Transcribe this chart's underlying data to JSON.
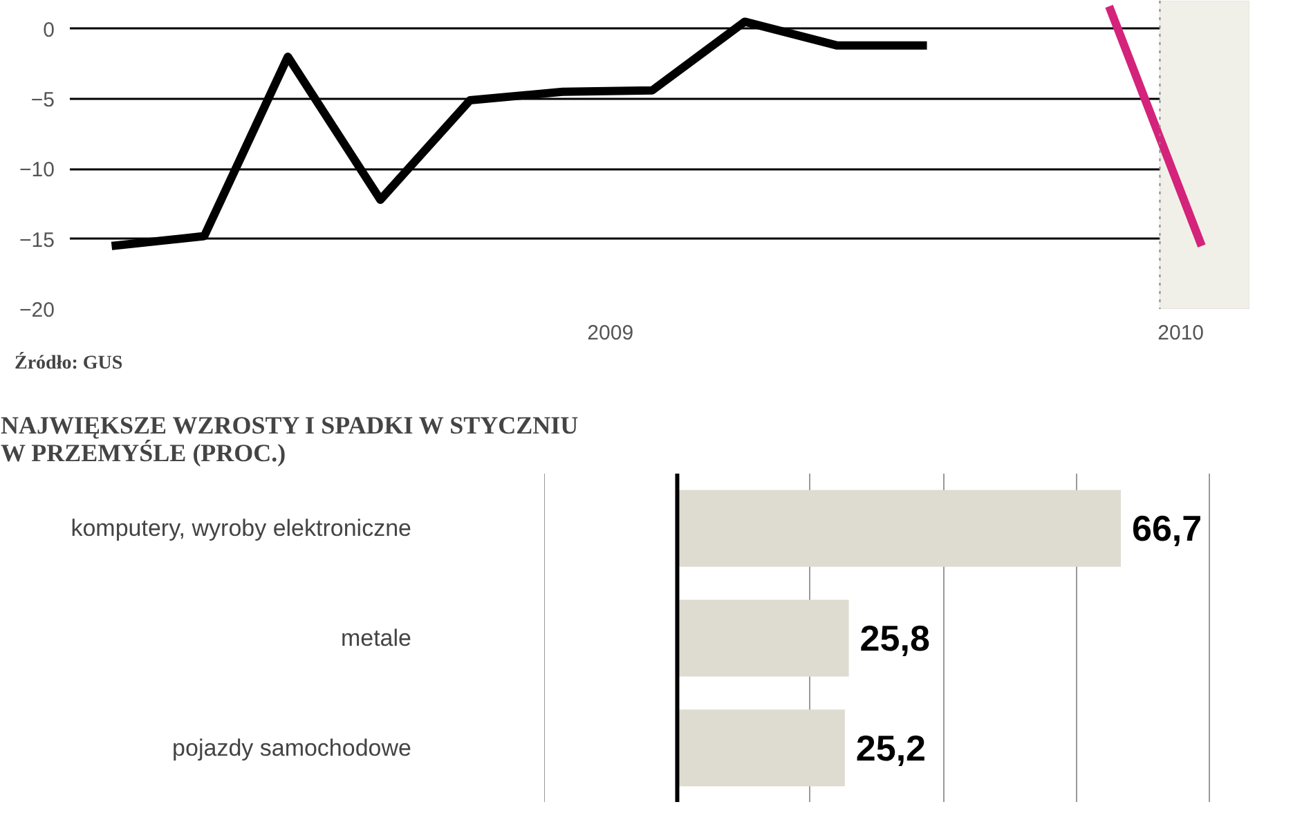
{
  "chart_data": [
    {
      "type": "line",
      "x": [
        "2009-01-15",
        "2009-02-15",
        "2009-03-15",
        "2009-04-15",
        "2009-05-15",
        "2009-06-15",
        "2009-07-15",
        "2009-08-15",
        "2009-09-15",
        "2009-10-15",
        "2009-11-15",
        "2009-12-15",
        "2010-01-15"
      ],
      "series": [
        {
          "color": "#000000",
          "values": [
            -15.5,
            -14.8,
            -2,
            -12.2,
            -5.1,
            -4.5,
            -4.4,
            0.5,
            -1.2,
            -1.2,
            null,
            null,
            null
          ]
        },
        {
          "color": "#d4237a",
          "values": [
            null,
            null,
            null,
            null,
            null,
            null,
            null,
            null,
            null,
            null,
            null,
            1.6,
            -15.5
          ]
        }
      ],
      "xlim": [
        "2009-01-01",
        "2010-01-31"
      ],
      "xticks": [
        {
          "value": "2009-07-01",
          "label": "2009"
        },
        {
          "value": "2010-01-08",
          "label": "2010"
        }
      ],
      "ylim": [
        -20,
        2
      ],
      "yticks": [
        -20,
        -15,
        -10,
        -5,
        0
      ],
      "grid": "y",
      "marker": "none",
      "line_style": "solid",
      "ref_lines": [
        {
          "axis": "x",
          "value": "2010-01-01",
          "label": null,
          "color": "#888888",
          "line_style": "dotted"
        }
      ],
      "bands": [
        {
          "axis": "x",
          "from": "2010-01-01",
          "to": "2010-01-31",
          "label": null,
          "color": "#f1f0e8"
        }
      ],
      "annotations": [
        "Źródło: GUS"
      ]
    },
    {
      "type": "bar",
      "orientation": "horizontal",
      "title": "NAJWIĘKSZE WZROSTY I SPADKI W STYCZNIU\nW PRZEMYŚLE (PROC.)",
      "categories": [
        "komputery, wyroby elektroniczne",
        "metale",
        "pojazdy samochodowe"
      ],
      "values": [
        66.7,
        25.8,
        25.2
      ],
      "color": "#dedbd0",
      "value_labels": [
        "66,7",
        "25,8",
        "25,2"
      ],
      "grid": "x"
    }
  ]
}
